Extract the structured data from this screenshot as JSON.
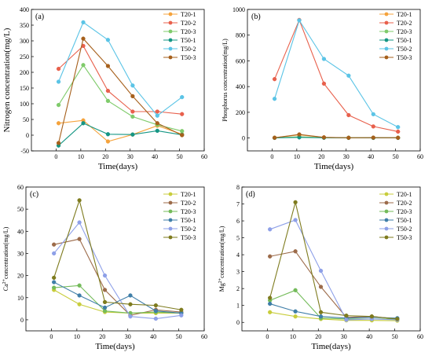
{
  "chart_data": [
    {
      "type": "line",
      "panel_label": "(a)",
      "xlabel": "Time(days)",
      "ylabel": "Nitrogen concentration(mg/L)",
      "xlim": [
        -10,
        60
      ],
      "ylim": [
        -50,
        400
      ],
      "xticks": [
        0,
        10,
        20,
        30,
        40,
        50,
        60
      ],
      "yticks": [
        -50,
        0,
        50,
        100,
        150,
        200,
        250,
        300,
        350,
        400
      ],
      "legend_position": "top-right",
      "x": [
        1,
        11,
        21,
        31,
        41,
        51
      ],
      "series": [
        {
          "name": "T20-1",
          "color": "#F5A33C",
          "values": [
            38,
            47,
            -20,
            2,
            30,
            3
          ]
        },
        {
          "name": "T20-2",
          "color": "#E8604C",
          "values": [
            211,
            284,
            141,
            75,
            75,
            67
          ]
        },
        {
          "name": "T20-3",
          "color": "#7FCB6B",
          "values": [
            96,
            223,
            109,
            59,
            33,
            13
          ]
        },
        {
          "name": "T50-1",
          "color": "#159684",
          "values": [
            -33,
            38,
            3,
            2,
            14,
            1
          ]
        },
        {
          "name": "T50-2",
          "color": "#5BC4E6",
          "values": [
            170,
            359,
            303,
            158,
            62,
            121
          ]
        },
        {
          "name": "T50-3",
          "color": "#A6601C",
          "values": [
            -25,
            307,
            220,
            124,
            38,
            0
          ]
        }
      ]
    },
    {
      "type": "line",
      "panel_label": "(b)",
      "xlabel": "Time(days)",
      "ylabel": "Phosphorus concentration(mg/L)",
      "xlim": [
        -10,
        60
      ],
      "ylim": [
        -100,
        1000
      ],
      "xticks": [
        0,
        10,
        20,
        30,
        40,
        50,
        60
      ],
      "yticks": [
        0,
        200,
        400,
        600,
        800,
        1000
      ],
      "legend_position": "top-right",
      "x": [
        1,
        11,
        21,
        31,
        41,
        51
      ],
      "series": [
        {
          "name": "T20-1",
          "color": "#F5A33C",
          "values": [
            3,
            25,
            5,
            2,
            3,
            2
          ]
        },
        {
          "name": "T20-2",
          "color": "#E8604C",
          "values": [
            458,
            918,
            423,
            178,
            90,
            50
          ]
        },
        {
          "name": "T20-3",
          "color": "#7FCB6B",
          "values": [
            2,
            10,
            3,
            2,
            2,
            2
          ]
        },
        {
          "name": "T50-1",
          "color": "#159684",
          "values": [
            1,
            5,
            2,
            1,
            1,
            1
          ]
        },
        {
          "name": "T50-2",
          "color": "#5BC4E6",
          "values": [
            305,
            915,
            615,
            485,
            185,
            85
          ]
        },
        {
          "name": "T50-3",
          "color": "#A6601C",
          "values": [
            2,
            28,
            5,
            2,
            3,
            2
          ]
        }
      ]
    },
    {
      "type": "line",
      "panel_label": "(c)",
      "xlabel": "Time(days)",
      "ylabel": "Ca2+concentration(mg/L)",
      "ylabel_parts": [
        "Ca",
        "2+",
        "concentration(mg/L)"
      ],
      "xlim": [
        -10,
        60
      ],
      "ylim": [
        -5,
        60
      ],
      "xticks": [
        0,
        10,
        20,
        30,
        40,
        50,
        60
      ],
      "yticks": [
        0,
        10,
        20,
        30,
        40,
        50,
        60
      ],
      "legend_position": "top-right",
      "x": [
        1,
        11,
        21,
        31,
        41,
        51
      ],
      "series": [
        {
          "name": "T20-1",
          "color": "#C8CD3C",
          "values": [
            13.5,
            7,
            3.5,
            3,
            3,
            3
          ]
        },
        {
          "name": "T20-2",
          "color": "#9C6B4A",
          "values": [
            34,
            36.5,
            13.5,
            2,
            4.5,
            3.5
          ]
        },
        {
          "name": "T20-3",
          "color": "#74BB5A",
          "values": [
            14.5,
            15.5,
            4,
            3,
            3.5,
            3
          ]
        },
        {
          "name": "T50-1",
          "color": "#3F7EA8",
          "values": [
            17,
            11,
            5.5,
            11,
            4,
            3
          ]
        },
        {
          "name": "T50-2",
          "color": "#8EA0E8",
          "values": [
            30,
            44,
            20,
            1.5,
            0.5,
            2
          ]
        },
        {
          "name": "T50-3",
          "color": "#7E7B1E",
          "values": [
            19,
            54,
            8,
            7,
            6.5,
            4.5
          ]
        }
      ]
    },
    {
      "type": "line",
      "panel_label": "(d)",
      "xlabel": "Time(days)",
      "ylabel": "Mg2+concentration(mg/L)",
      "ylabel_parts": [
        "Mg",
        "2+",
        "concentration(mg/L)"
      ],
      "xlim": [
        -10,
        60
      ],
      "ylim": [
        -0.5,
        8
      ],
      "xticks": [
        0,
        10,
        20,
        30,
        40,
        50,
        60
      ],
      "yticks": [
        0,
        1,
        2,
        3,
        4,
        5,
        6,
        7,
        8
      ],
      "legend_position": "top-right",
      "x": [
        1,
        11,
        21,
        31,
        41,
        51
      ],
      "series": [
        {
          "name": "T20-1",
          "color": "#C8CD3C",
          "values": [
            0.6,
            0.35,
            0.2,
            0.12,
            0.12,
            0.1
          ]
        },
        {
          "name": "T20-2",
          "color": "#9C6B4A",
          "values": [
            3.9,
            4.2,
            2.1,
            0.3,
            0.35,
            0.2
          ]
        },
        {
          "name": "T20-3",
          "color": "#74BB5A",
          "values": [
            1.3,
            1.9,
            0.25,
            0.2,
            0.2,
            0.2
          ]
        },
        {
          "name": "T50-1",
          "color": "#3F7EA8",
          "values": [
            1.1,
            0.65,
            0.35,
            0.25,
            0.3,
            0.25
          ]
        },
        {
          "name": "T50-2",
          "color": "#8EA0E8",
          "values": [
            5.5,
            6.05,
            3.05,
            0.15,
            0.2,
            0.15
          ]
        },
        {
          "name": "T50-3",
          "color": "#7E7B1E",
          "values": [
            1.45,
            7.1,
            0.6,
            0.4,
            0.35,
            0.2
          ]
        }
      ]
    }
  ]
}
